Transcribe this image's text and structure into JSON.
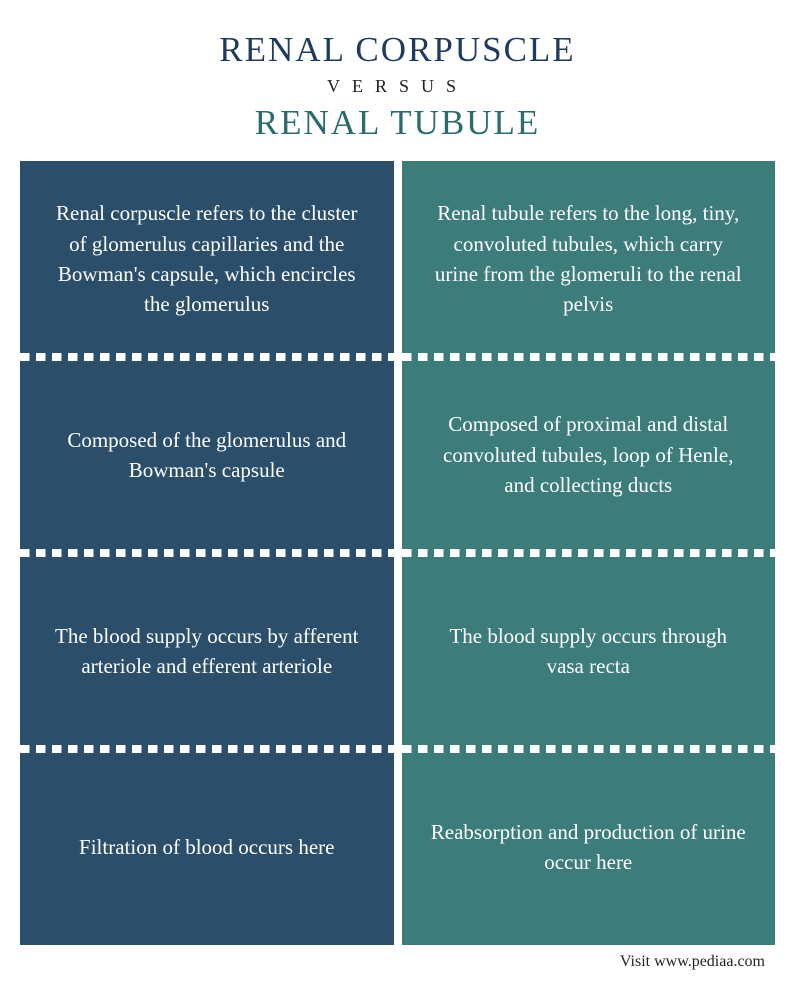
{
  "header": {
    "title1": "RENAL CORPUSCLE",
    "versus": "VERSUS",
    "title2": "RENAL TUBULE",
    "title1_color": "#1f3a5f",
    "title2_color": "#2a6b6e"
  },
  "columns": {
    "left": {
      "bg_color": "#2b4f6b",
      "cells": [
        "Renal corpuscle refers to the cluster of glomerulus capillaries and the Bowman's capsule, which encircles the glomerulus",
        "Composed of the glomerulus and Bowman's capsule",
        "The blood supply occurs by afferent arteriole and efferent arteriole",
        "Filtration of blood occurs here"
      ]
    },
    "right": {
      "bg_color": "#3c7d7c",
      "cells": [
        "Renal tubule refers to the long, tiny, convoluted tubules, which carry urine from the glomeruli to the renal pelvis",
        "Composed of proximal and distal convoluted tubules, loop of Henle, and collecting ducts",
        "The blood supply occurs through vasa recta",
        "Reabsorption and production of urine occur here"
      ]
    }
  },
  "footer": "Visit www.pediaa.com",
  "style": {
    "body_bg": "#ffffff",
    "text_color": "#ffffff",
    "cell_fontsize": 21,
    "title_fontsize": 35,
    "divider_dash_color": "#ffffff"
  }
}
